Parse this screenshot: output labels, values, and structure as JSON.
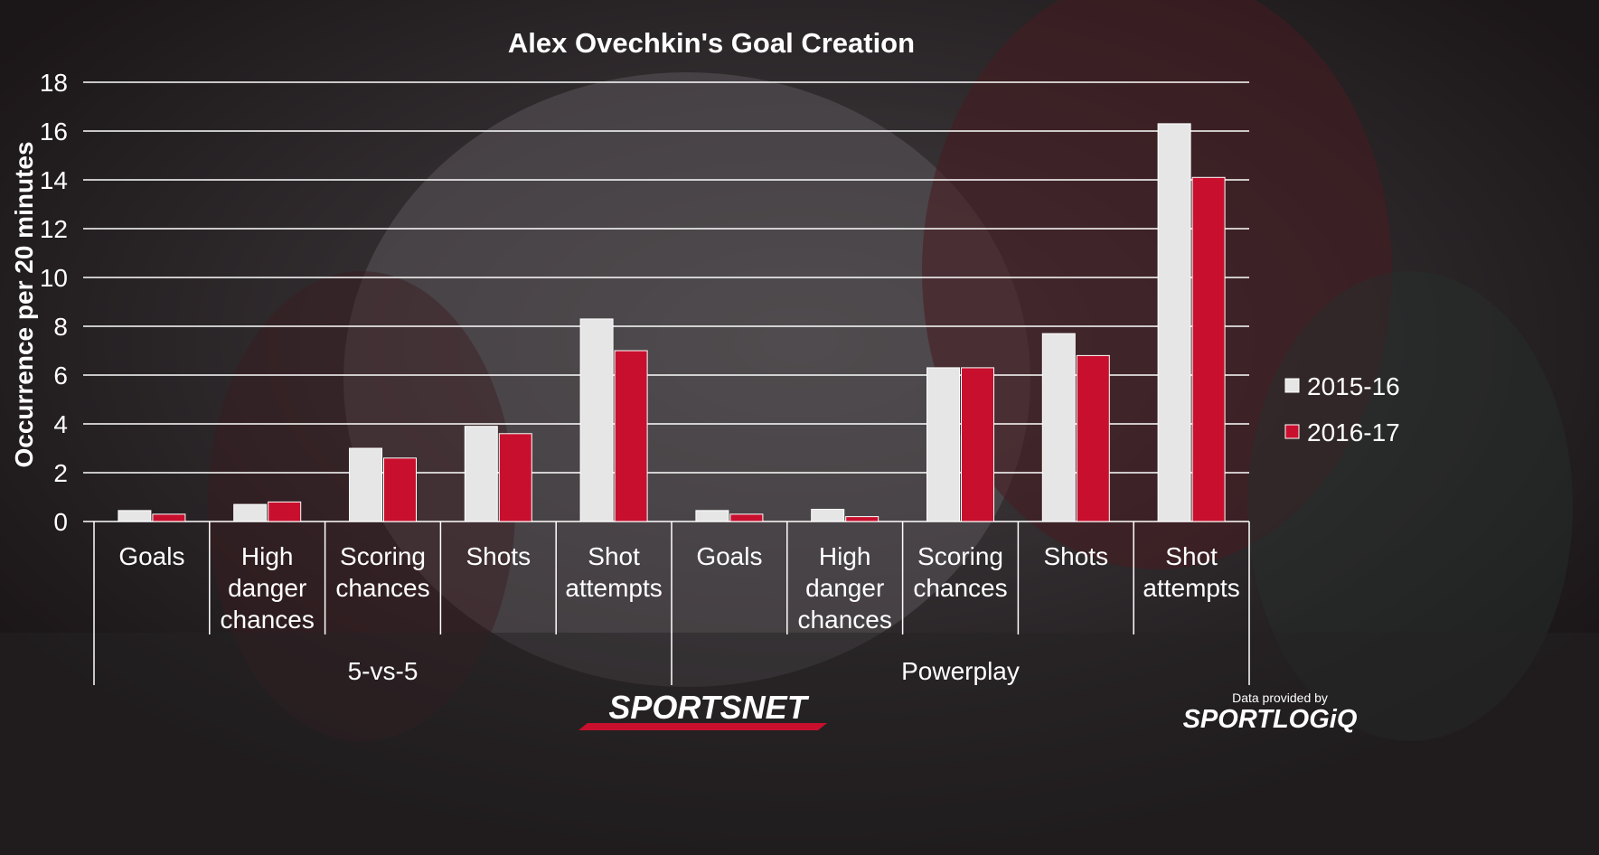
{
  "chart_data": {
    "type": "bar",
    "title": "Alex Ovechkin's Goal Creation",
    "ylabel": "Occurrence per 20 minutes",
    "xlabel": "",
    "ylim": [
      0,
      18
    ],
    "yticks": [
      0,
      2,
      4,
      6,
      8,
      10,
      12,
      14,
      16,
      18
    ],
    "grid": true,
    "legend_position": "right",
    "groups": [
      {
        "label": "5-vs-5",
        "count": 5
      },
      {
        "label": "Powerplay",
        "count": 5
      }
    ],
    "categories": [
      [
        "Goals"
      ],
      [
        "High",
        "danger",
        "chances"
      ],
      [
        "Scoring",
        "chances"
      ],
      [
        "Shots"
      ],
      [
        "Shot",
        "attempts"
      ],
      [
        "Goals"
      ],
      [
        "High",
        "danger",
        "chances"
      ],
      [
        "Scoring",
        "chances"
      ],
      [
        "Shots"
      ],
      [
        "Shot",
        "attempts"
      ]
    ],
    "series": [
      {
        "name": "2015-16",
        "color": "#e6e6e6",
        "values": [
          0.45,
          0.7,
          3.0,
          3.9,
          8.3,
          0.45,
          0.5,
          6.3,
          7.7,
          16.3
        ]
      },
      {
        "name": "2016-17",
        "color": "#c8102e",
        "values": [
          0.3,
          0.8,
          2.6,
          3.6,
          7.0,
          0.3,
          0.2,
          6.3,
          6.8,
          14.1
        ]
      }
    ]
  },
  "branding": {
    "logo_text": "SPORTSNET",
    "credit_label": "Data provided by",
    "credit_logo": "SPORTLOGiQ"
  },
  "colors": {
    "background": "#2a2326",
    "grid": "#ffffff",
    "text": "#ffffff"
  }
}
